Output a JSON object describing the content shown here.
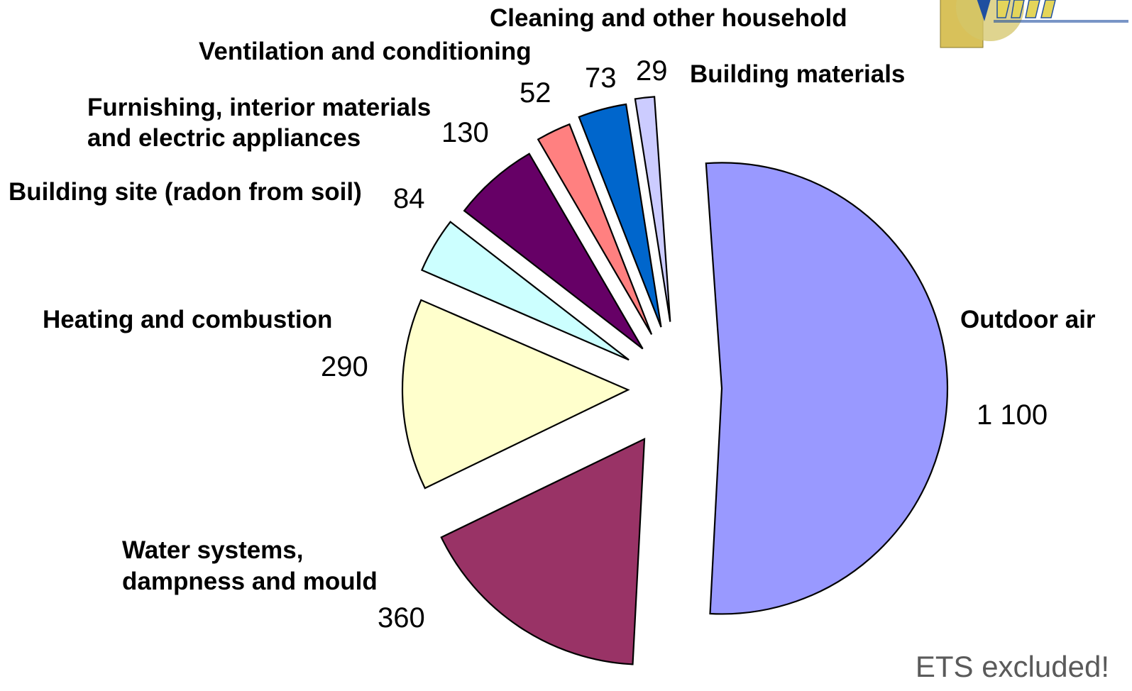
{
  "chart_data": {
    "type": "pie",
    "title": "",
    "slices": [
      {
        "label": "Outdoor air",
        "value": 1100,
        "value_label": "1 100",
        "color": "#9999ff"
      },
      {
        "label": "Water systems, dampness and mould",
        "label_lines": [
          "Water systems,",
          "dampness and mould"
        ],
        "value": 360,
        "value_label": "360",
        "color": "#993366"
      },
      {
        "label": "Heating and combustion",
        "label_lines": [
          "Heating and combustion"
        ],
        "value": 290,
        "value_label": "290",
        "color": "#ffffcc"
      },
      {
        "label": "Building site (radon from soil)",
        "label_lines": [
          "Building site (radon from soil)"
        ],
        "value": 84,
        "value_label": "84",
        "color": "#ccffff"
      },
      {
        "label": "Furnishing, interior materials and electric appliances",
        "label_lines": [
          "Furnishing, interior materials",
          "and electric appliances"
        ],
        "value": 130,
        "value_label": "130",
        "color": "#660066"
      },
      {
        "label": "Ventilation and conditioning",
        "label_lines": [
          "Ventilation and conditioning"
        ],
        "value": 52,
        "value_label": "52",
        "color": "#ff8080"
      },
      {
        "label": "Cleaning and other household",
        "label_lines": [
          "Cleaning and other household"
        ],
        "value": 73,
        "value_label": "73",
        "color": "#0066cc"
      },
      {
        "label": "Building materials",
        "label_lines": [
          "Building materials"
        ],
        "value": 29,
        "value_label": "29",
        "color": "#ccccff"
      }
    ],
    "legend": "none"
  },
  "note": "ETS excluded!",
  "logo": {
    "icon": "project-logo-icon",
    "colors": [
      "#c8b24a",
      "#1f4fa0"
    ]
  }
}
